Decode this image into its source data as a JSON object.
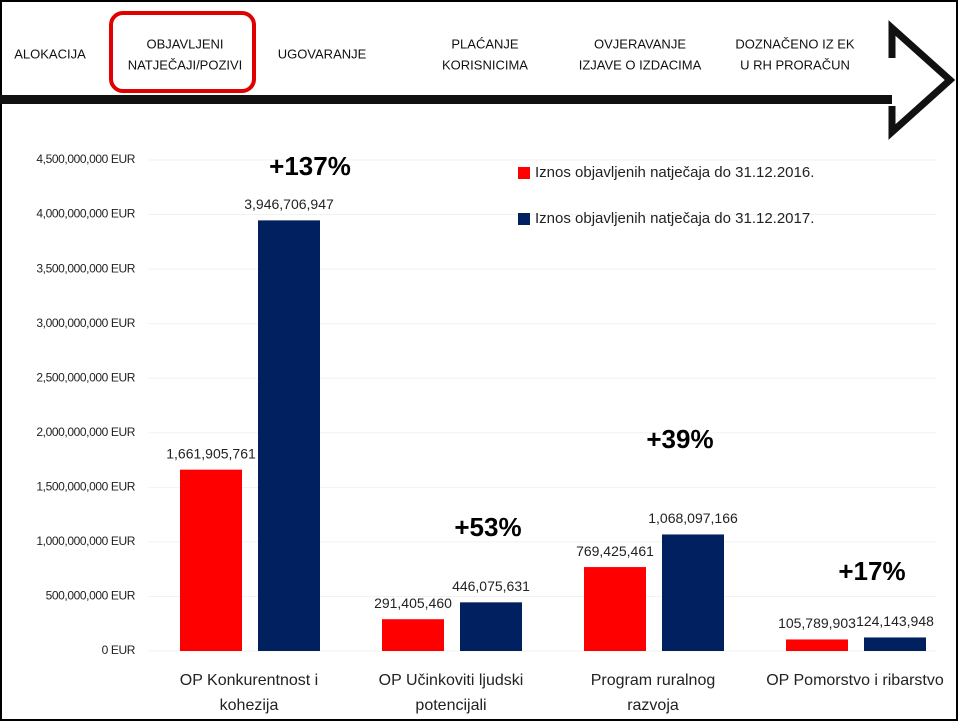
{
  "header": {
    "steps": [
      [
        "ALOKACIJA"
      ],
      [
        "OBJAVLJENI",
        "NATJEČAJI/POZIVI"
      ],
      [
        "UGOVARANJE"
      ],
      [
        "PLAĆANJE",
        "KORISNICIMA"
      ],
      [
        "OVJERAVANJE",
        "IZJAVE O IZDACIMA"
      ],
      [
        "DOZNAČENO IZ EK",
        "U RH PRORAČUN"
      ]
    ]
  },
  "chart_data": {
    "type": "bar",
    "categories": [
      "OP Konkurentnost i kohezija",
      "OP Učinkoviti ljudski potencijali",
      "Program ruralnog razvoja",
      "OP Pomorstvo i ribarstvo"
    ],
    "series": [
      {
        "name": "Iznos objavljenih natječaja do 31.12.2016.",
        "color": "#ff0000",
        "values": [
          1661905761,
          291405460,
          769425461,
          105789903
        ],
        "value_labels": [
          "1,661,905,761",
          "291,405,460",
          "769,425,461",
          "105,789,903"
        ]
      },
      {
        "name": "Iznos objavljenih natječaja do 31.12.2017.",
        "color": "#002060",
        "values": [
          3946706947,
          446075631,
          1068097166,
          124143948
        ],
        "value_labels": [
          "3,946,706,947",
          "446,075,631",
          "1,068,097,166",
          "124,143,948"
        ]
      }
    ],
    "annotations": [
      "+137%",
      "+53%",
      "+39%",
      "+17%"
    ],
    "ylim": [
      0,
      4500000000
    ],
    "yticks": [
      {
        "value": 0,
        "label": "0 EUR"
      },
      {
        "value": 500000000,
        "label": "500,000,000 EUR"
      },
      {
        "value": 1000000000,
        "label": "1,000,000,000 EUR"
      },
      {
        "value": 1500000000,
        "label": "1,500,000,000 EUR"
      },
      {
        "value": 2000000000,
        "label": "2,000,000,000 EUR"
      },
      {
        "value": 2500000000,
        "label": "2,500,000,000 EUR"
      },
      {
        "value": 3000000000,
        "label": "3,000,000,000 EUR"
      },
      {
        "value": 3500000000,
        "label": "3,500,000,000 EUR"
      },
      {
        "value": 4000000000,
        "label": "4,000,000,000 EUR"
      },
      {
        "value": 4500000000,
        "label": "4,500,000,000 EUR"
      }
    ],
    "grid": true,
    "legend": "top-right"
  }
}
